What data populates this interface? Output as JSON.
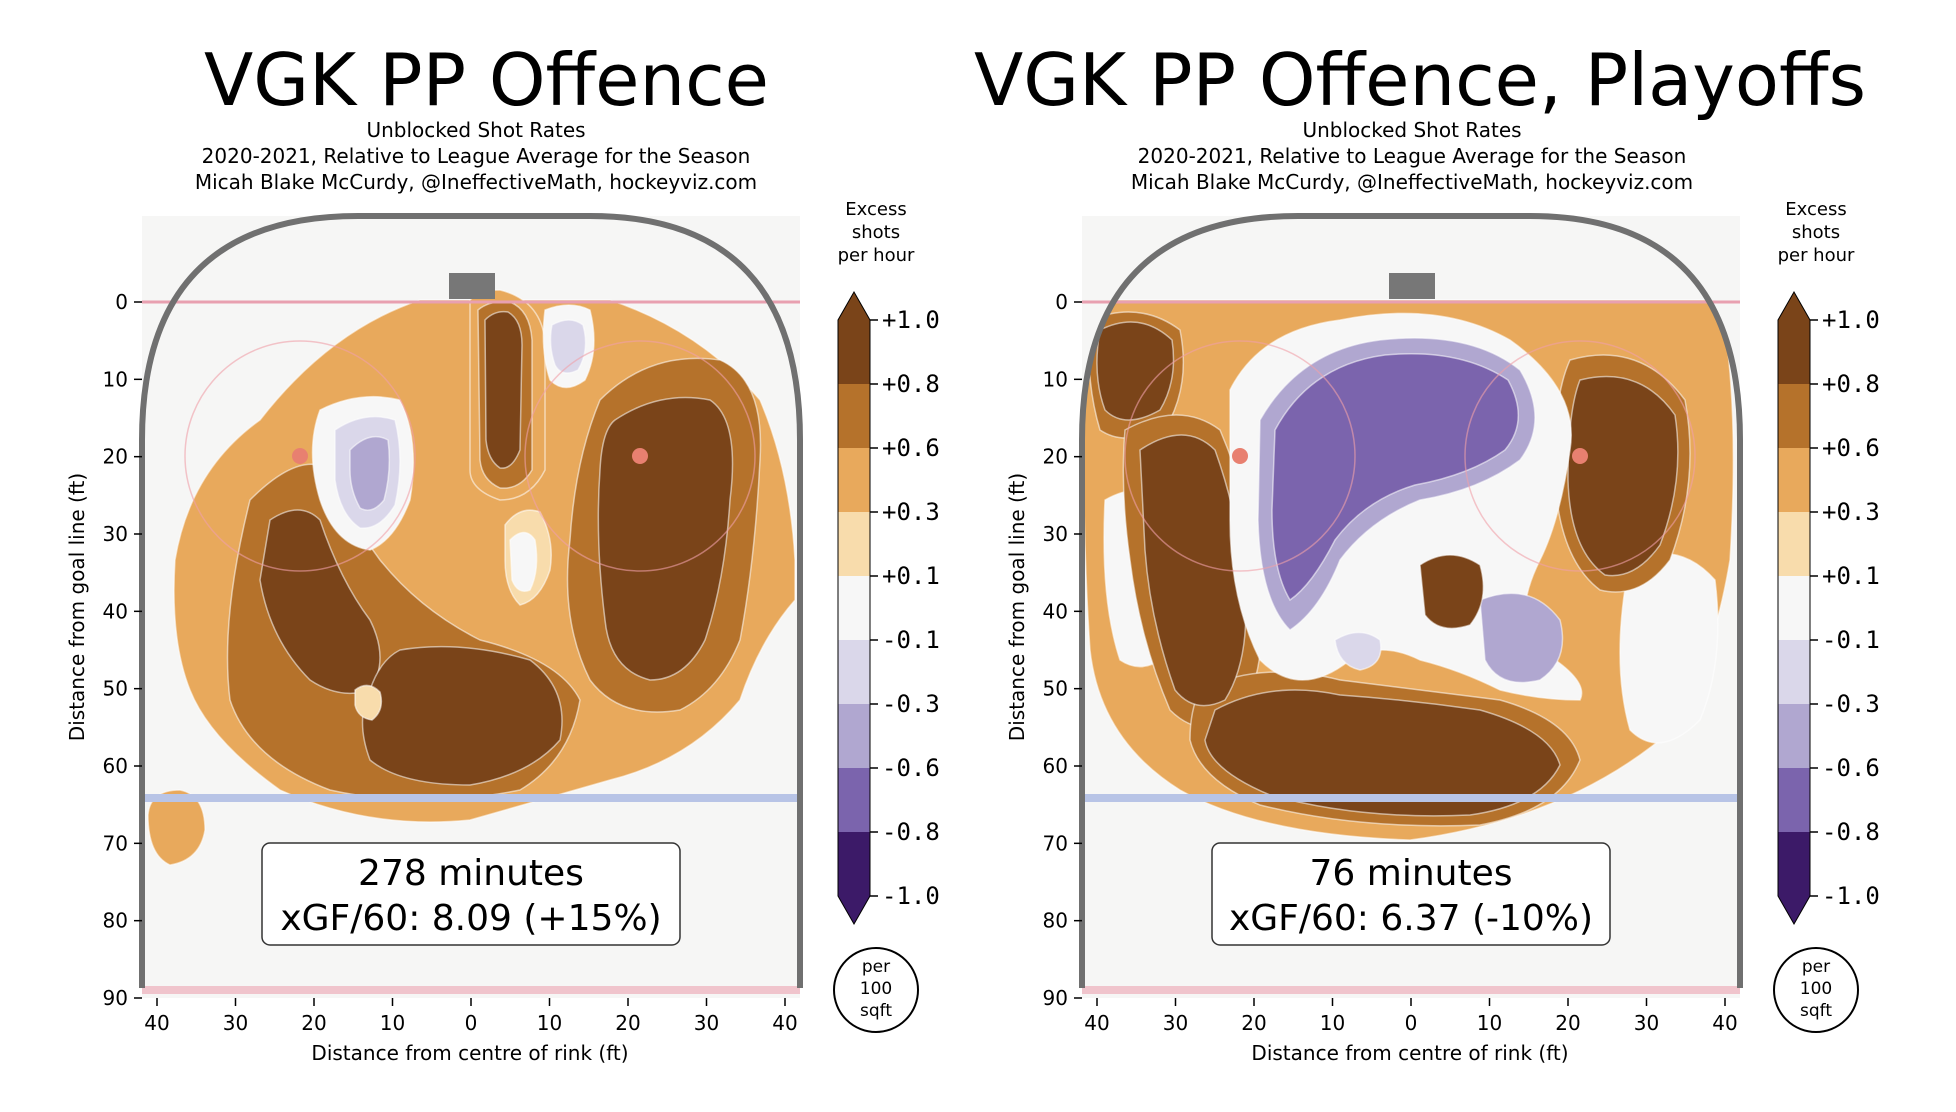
{
  "chart_data": [
    {
      "type": "heatmap",
      "title": "VGK PP Offence",
      "subtitle_lines": [
        "Unblocked Shot Rates",
        "2020-2021, Relative to League Average for the Season",
        "Micah Blake McCurdy, @IneffectiveMath, hockeyviz.com"
      ],
      "xlabel": "Distance from centre of rink (ft)",
      "ylabel": "Distance from goal line (ft)",
      "x_ticks": [
        "40",
        "30",
        "20",
        "10",
        "0",
        "10",
        "20",
        "30",
        "40"
      ],
      "y_ticks": [
        "0",
        "10",
        "20",
        "30",
        "40",
        "50",
        "60",
        "70",
        "80",
        "90"
      ],
      "colorbar_title": "Excess shots per hour",
      "colorbar_ticks": [
        "+1.0",
        "+0.8",
        "+0.6",
        "+0.3",
        "+0.1",
        "-0.1",
        "-0.3",
        "-0.6",
        "-0.8",
        "-1.0"
      ],
      "colorbar_unit": "per 100 sqft",
      "minutes_text": "278 minutes",
      "xgf_text": "xGF/60: 8.09 (+15%)"
    },
    {
      "type": "heatmap",
      "title": "VGK PP Offence, Playoffs",
      "subtitle_lines": [
        "Unblocked Shot Rates",
        "2020-2021, Relative to League Average for the Season",
        "Micah Blake McCurdy, @IneffectiveMath, hockeyviz.com"
      ],
      "xlabel": "Distance from centre of rink (ft)",
      "ylabel": "Distance from goal line (ft)",
      "x_ticks": [
        "40",
        "30",
        "20",
        "10",
        "0",
        "10",
        "20",
        "30",
        "40"
      ],
      "y_ticks": [
        "0",
        "10",
        "20",
        "30",
        "40",
        "50",
        "60",
        "70",
        "80",
        "90"
      ],
      "colorbar_title": "Excess shots per hour",
      "colorbar_ticks": [
        "+1.0",
        "+0.8",
        "+0.6",
        "+0.3",
        "+0.1",
        "-0.1",
        "-0.3",
        "-0.6",
        "-0.8",
        "-1.0"
      ],
      "colorbar_unit": "per 100 sqft",
      "minutes_text": "76 minutes",
      "xgf_text": "xGF/60: 6.37 (-10%)"
    }
  ],
  "colors": {
    "levels": [
      "#7a4419",
      "#b5722b",
      "#e8a95c",
      "#f8dcac",
      "#f7f7f7",
      "#dad7ea",
      "#b0a7d0",
      "#7b64ad",
      "#3c1a68"
    ],
    "rink_board": "#707070",
    "goal_line": "#e8a0b0",
    "blue_line": "#b8c4e6"
  }
}
